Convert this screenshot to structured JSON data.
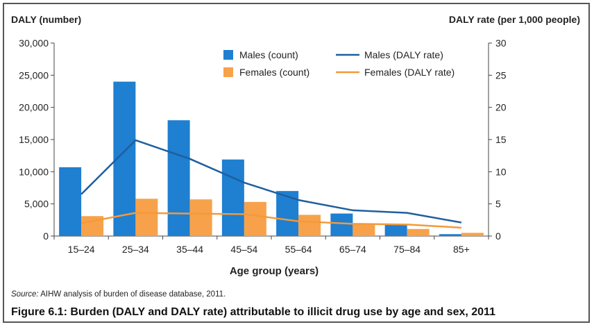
{
  "chart_data": {
    "type": "bar",
    "categories": [
      "15–24",
      "25–34",
      "35–44",
      "45–54",
      "55–64",
      "65–74",
      "75–84",
      "85+"
    ],
    "series": [
      {
        "name": "Males (count)",
        "type": "bar",
        "axis": "left",
        "color": "#1f7fd1",
        "values": [
          10700,
          24000,
          18000,
          11900,
          7000,
          3500,
          1800,
          300
        ]
      },
      {
        "name": "Females (count)",
        "type": "bar",
        "axis": "left",
        "color": "#f7a24a",
        "values": [
          3100,
          5800,
          5700,
          5300,
          3300,
          1900,
          1100,
          500
        ]
      },
      {
        "name": "Males (DALY rate)",
        "type": "line",
        "axis": "right",
        "color": "#1f5f9e",
        "values": [
          6.5,
          14.9,
          12.0,
          8.3,
          5.6,
          4.0,
          3.6,
          2.1
        ]
      },
      {
        "name": "Females (DALY rate)",
        "type": "line",
        "axis": "right",
        "color": "#f39a3a",
        "values": [
          2.0,
          3.6,
          3.5,
          3.4,
          2.3,
          1.9,
          1.8,
          1.3
        ]
      }
    ],
    "ylabel_left": "DALY (number)",
    "ylabel_right": "DALY rate (per 1,000 people)",
    "xlabel": "Age group (years)",
    "ylim_left": [
      0,
      30000
    ],
    "ylim_right": [
      0,
      30
    ],
    "yticks_left": [
      "0",
      "5,000",
      "10,000",
      "15,000",
      "20,000",
      "25,000",
      "30,000"
    ],
    "yticks_right": [
      "0",
      "5",
      "10",
      "15",
      "20",
      "25",
      "30"
    ],
    "grid": false,
    "legend_position": "top-right"
  },
  "source_label": "Source:",
  "source_text": " AIHW analysis of burden of disease database, 2011.",
  "caption": "Figure 6.1: Burden (DALY and DALY rate) attributable to illicit drug use by age and sex, 2011"
}
